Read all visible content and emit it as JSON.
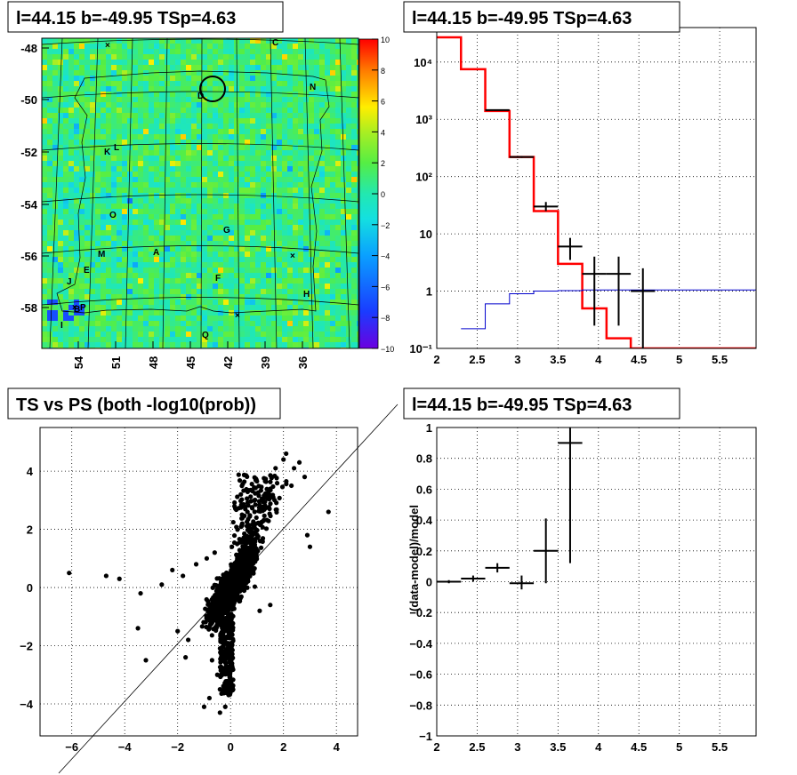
{
  "chart_data": [
    {
      "type": "heatmap",
      "title": "l=44.15 b=-49.95 TSp=4.63",
      "x_ticks": [
        "54",
        "51",
        "48",
        "45",
        "42",
        "39",
        "36"
      ],
      "y_ticks": [
        "-48",
        "-50",
        "-52",
        "-54",
        "-56",
        "-58"
      ],
      "colorbar_ticks": [
        "10",
        "8",
        "6",
        "4",
        "2",
        "0",
        "−2",
        "−4",
        "−6",
        "−8",
        "−10"
      ],
      "colorbar_range": [
        -10,
        10
      ],
      "background_level": 1,
      "source_labels": [
        "C",
        "N",
        "D",
        "K",
        "L",
        "O",
        "G",
        "M",
        "A",
        "E",
        "F",
        "J",
        "H",
        "B",
        "P",
        "I",
        "Q"
      ],
      "marked_source": "D"
    },
    {
      "type": "line",
      "title": "l=44.15 b=-49.95 TSp=4.63",
      "x_ticks": [
        "2",
        "2.5",
        "3",
        "3.5",
        "4",
        "4.5",
        "5",
        "5.5"
      ],
      "y_ticks": [
        "10⁻¹",
        "1",
        "10",
        "10²",
        "10³",
        "10⁴"
      ],
      "xlim": [
        2,
        5.95
      ],
      "ylim": [
        0.1,
        40000
      ],
      "y_scale": "log",
      "grid": true,
      "series": [
        {
          "style": "step",
          "color": "#ff0000",
          "bin_edges": [
            2.0,
            2.3,
            2.6,
            2.9,
            3.2,
            3.5,
            3.8,
            4.1,
            4.4,
            5.95
          ],
          "values": [
            27000,
            7500,
            1400,
            220,
            25,
            3,
            0.5,
            0.15,
            0.1
          ]
        },
        {
          "style": "step",
          "color": "#0000cc",
          "bin_edges": [
            2.3,
            2.6,
            2.9,
            3.2,
            3.5,
            3.8,
            5.95
          ],
          "values": [
            0.22,
            0.6,
            0.9,
            1.0,
            1.02,
            1.05
          ]
        },
        {
          "style": "errorbar",
          "color": "#000000",
          "points": [
            {
              "x": 2.75,
              "y": 1450,
              "xerr": 0.15,
              "ylo": 1430,
              "yhi": 1470
            },
            {
              "x": 3.05,
              "y": 220,
              "xerr": 0.15,
              "ylo": 212,
              "yhi": 228
            },
            {
              "x": 3.35,
              "y": 30,
              "xerr": 0.15,
              "ylo": 25,
              "yhi": 36
            },
            {
              "x": 3.65,
              "y": 6,
              "xerr": 0.15,
              "ylo": 3.5,
              "yhi": 8.5
            },
            {
              "x": 3.95,
              "y": 2,
              "xerr": 0.15,
              "ylo": 0.25,
              "yhi": 4
            },
            {
              "x": 4.25,
              "y": 2,
              "xerr": 0.15,
              "ylo": 0.25,
              "yhi": 4
            },
            {
              "x": 4.55,
              "y": 1,
              "xerr": 0.15,
              "ylo": 0.1,
              "yhi": 2.5
            }
          ]
        }
      ]
    },
    {
      "type": "scatter",
      "title": "TS vs PS (both -log10(prob))",
      "x_ticks": [
        "−6",
        "−4",
        "−2",
        "0",
        "2",
        "4"
      ],
      "y_ticks": [
        "4",
        "2",
        "0",
        "−2",
        "−4"
      ],
      "xlim": [
        -7.2,
        4.8
      ],
      "ylim": [
        -5.1,
        5.5
      ],
      "grid": true,
      "diagonal": {
        "from": [
          -7.2,
          -7.2
        ],
        "to": [
          6.2,
          6.2
        ]
      },
      "outliers": [
        [
          -6.1,
          0.5
        ],
        [
          -4.7,
          0.4
        ],
        [
          -4.2,
          0.3
        ],
        [
          -3.5,
          -1.4
        ],
        [
          -3.2,
          -2.5
        ],
        [
          -3.4,
          -0.2
        ],
        [
          -2.6,
          0.1
        ],
        [
          -2.2,
          0.6
        ],
        [
          -1.8,
          0.4
        ],
        [
          -1.3,
          0.8
        ],
        [
          -0.9,
          1.0
        ],
        [
          -0.6,
          1.2
        ],
        [
          3.7,
          2.6
        ],
        [
          2.9,
          1.8
        ],
        [
          3.0,
          1.4
        ],
        [
          2.6,
          4.3
        ],
        [
          2.4,
          4.1
        ],
        [
          2.1,
          4.6
        ],
        [
          2.0,
          4.4
        ],
        [
          1.7,
          4.1
        ],
        [
          2.8,
          3.8
        ],
        [
          2.3,
          3.5
        ],
        [
          1.5,
          -0.6
        ],
        [
          1.1,
          -0.8
        ],
        [
          -0.7,
          -2.5
        ],
        [
          -0.5,
          -3.0
        ],
        [
          -0.4,
          -3.5
        ],
        [
          -0.2,
          -4.1
        ],
        [
          -0.4,
          -4.3
        ],
        [
          -1.0,
          -4.1
        ],
        [
          -0.8,
          -3.8
        ],
        [
          -0.2,
          -3.6
        ],
        [
          -1.7,
          -2.4
        ],
        [
          -2.0,
          -1.5
        ],
        [
          -1.6,
          -1.8
        ]
      ]
    },
    {
      "type": "scatter",
      "title": "l=44.15 b=-49.95 TSp=4.63",
      "ylabel": "(data-model)/model",
      "x_ticks": [
        "2",
        "2.5",
        "3",
        "3.5",
        "4",
        "4.5",
        "5",
        "5.5"
      ],
      "y_ticks": [
        "1",
        "0.8",
        "0.6",
        "0.4",
        "0.2",
        "0",
        "−0.2",
        "−0.4",
        "−0.6",
        "−0.8",
        "−1"
      ],
      "xlim": [
        2,
        5.95
      ],
      "ylim": [
        -1,
        1
      ],
      "grid": true,
      "points": [
        {
          "x": 2.15,
          "y": 0.0,
          "xerr": 0.15,
          "ylo": -0.01,
          "yhi": 0.01
        },
        {
          "x": 2.45,
          "y": 0.02,
          "xerr": 0.15,
          "ylo": 0.0,
          "yhi": 0.04
        },
        {
          "x": 2.75,
          "y": 0.09,
          "xerr": 0.15,
          "ylo": 0.06,
          "yhi": 0.12
        },
        {
          "x": 3.05,
          "y": -0.01,
          "xerr": 0.15,
          "ylo": -0.05,
          "yhi": 0.04
        },
        {
          "x": 3.35,
          "y": 0.2,
          "xerr": 0.15,
          "ylo": -0.01,
          "yhi": 0.41
        },
        {
          "x": 3.65,
          "y": 0.9,
          "xerr": 0.15,
          "ylo": 0.12,
          "yhi": 1.0
        }
      ]
    }
  ]
}
